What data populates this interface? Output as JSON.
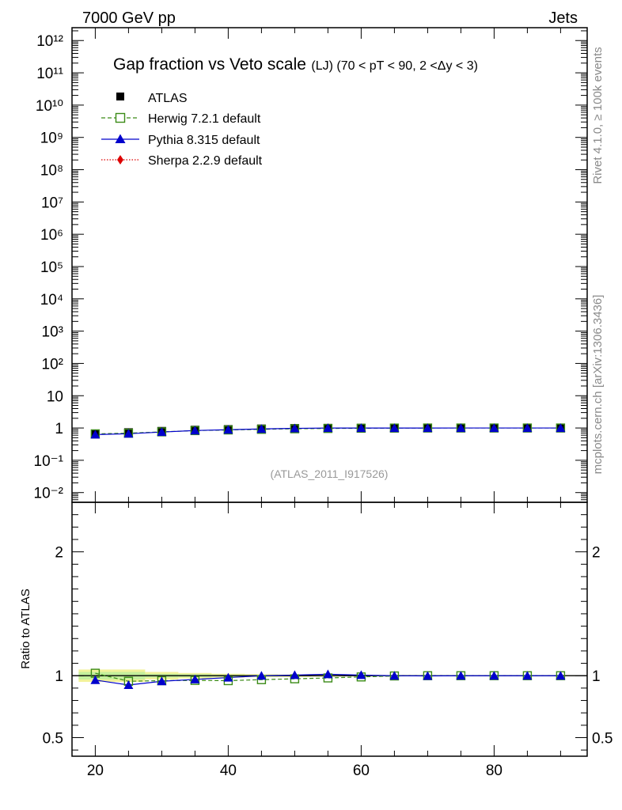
{
  "header": {
    "left": "7000 GeV pp",
    "right": "Jets"
  },
  "side_text": {
    "rivet": "Rivet 4.1.0, ≥ 100k events",
    "mcplots": "mcplots.cern.ch [arXiv:1306.3436]"
  },
  "colors": {
    "atlas": "#000000",
    "herwig": "#3a8a16",
    "pythia": "#0000cc",
    "sherpa": "#dd0000",
    "band_outer": "#f2f29a",
    "band_inner": "#c4ef9c"
  },
  "chart_data": [
    {
      "type": "scatter",
      "title_main": "Gap fraction vs Veto scale",
      "title_sub": "(LJ) (70 < pT <  90, 2 <Δy < 3)",
      "reference_label": "(ATLAS_2011_I917526)",
      "yscale": "log",
      "xlim": [
        16.5,
        94
      ],
      "ylim": [
        0.005,
        2500000000000.0
      ],
      "ytick_labels": [
        "10⁻²",
        "10⁻¹",
        "1",
        "10",
        "10²",
        "10³",
        "10⁴",
        "10⁵",
        "10⁶",
        "10⁷",
        "10⁸",
        "10⁹",
        "10¹⁰",
        "10¹¹",
        "10¹²"
      ],
      "ytick_values": [
        0.01,
        0.1,
        1,
        10,
        100,
        1000,
        10000,
        100000,
        1000000,
        10000000,
        100000000,
        1000000000,
        10000000000,
        100000000000,
        1000000000000
      ],
      "x": [
        20,
        25,
        30,
        35,
        40,
        45,
        50,
        55,
        60,
        65,
        70,
        75,
        80,
        85,
        90
      ],
      "series": [
        {
          "name": "ATLAS",
          "marker": "filled-square",
          "values": [
            0.65,
            0.72,
            0.79,
            0.86,
            0.9,
            0.94,
            0.97,
            0.985,
            0.99,
            0.995,
            1.0,
            1.0,
            1.0,
            1.0,
            1.0
          ]
        },
        {
          "name": "Herwig 7.2.1 default",
          "marker": "open-square",
          "line": "dashed",
          "values": [
            0.66,
            0.69,
            0.76,
            0.83,
            0.87,
            0.91,
            0.945,
            0.967,
            0.982,
            0.995,
            1.0,
            1.0,
            1.0,
            1.0,
            1.0
          ]
        },
        {
          "name": "Pythia 8.315 default",
          "marker": "filled-triangle",
          "line": "solid",
          "values": [
            0.625,
            0.665,
            0.75,
            0.835,
            0.885,
            0.937,
            0.975,
            0.998,
            0.996,
            0.996,
            0.998,
            1.0,
            1.0,
            1.0,
            1.0
          ]
        },
        {
          "name": "Sherpa 2.2.9 default",
          "marker": "filled-diamond",
          "line": "dotted",
          "values": []
        }
      ]
    },
    {
      "type": "line",
      "ylabel": "Ratio to ATLAS",
      "xlim": [
        16.5,
        94
      ],
      "ylim": [
        0.35,
        2.4
      ],
      "x": [
        20,
        25,
        30,
        35,
        40,
        45,
        50,
        55,
        60,
        65,
        70,
        75,
        80,
        85,
        90
      ],
      "xtick_values": [
        20,
        40,
        60,
        80
      ],
      "xtick_labels": [
        "20",
        "40",
        "60",
        "80"
      ],
      "ytick_values": [
        0.5,
        1,
        2
      ],
      "ytick_labels": [
        "0.5",
        "1",
        "2"
      ],
      "band": {
        "x_edges": [
          17.5,
          22.5,
          27.5,
          32.5,
          37.5,
          42.5,
          47.5,
          52.5,
          57.5,
          62.5,
          67.5,
          72.5,
          77.5,
          82.5,
          87.5,
          92.5
        ],
        "outer_half_width": [
          0.05,
          0.05,
          0.03,
          0.022,
          0.016,
          0.012,
          0.01,
          0.008,
          0.006,
          0.005,
          0.004,
          0.003,
          0.003,
          0.003,
          0.003
        ],
        "inner_half_width": [
          0.03,
          0.03,
          0.015,
          0.012,
          0.008,
          0.006,
          0.005,
          0.004,
          0.003,
          0.0025,
          0.002,
          0.002,
          0.002,
          0.002,
          0.002
        ]
      },
      "series": [
        {
          "name": "Herwig 7.2.1 default",
          "values": [
            1.02,
            0.955,
            0.96,
            0.962,
            0.96,
            0.968,
            0.975,
            0.982,
            0.99,
            0.998,
            1.0,
            1.0,
            1.0,
            1.0,
            1.0
          ]
        },
        {
          "name": "Pythia 8.315 default",
          "values": [
            0.965,
            0.925,
            0.955,
            0.97,
            0.985,
            1.0,
            1.005,
            1.012,
            1.005,
            1.0,
            0.998,
            1.0,
            1.0,
            1.0,
            1.0
          ]
        }
      ]
    }
  ]
}
